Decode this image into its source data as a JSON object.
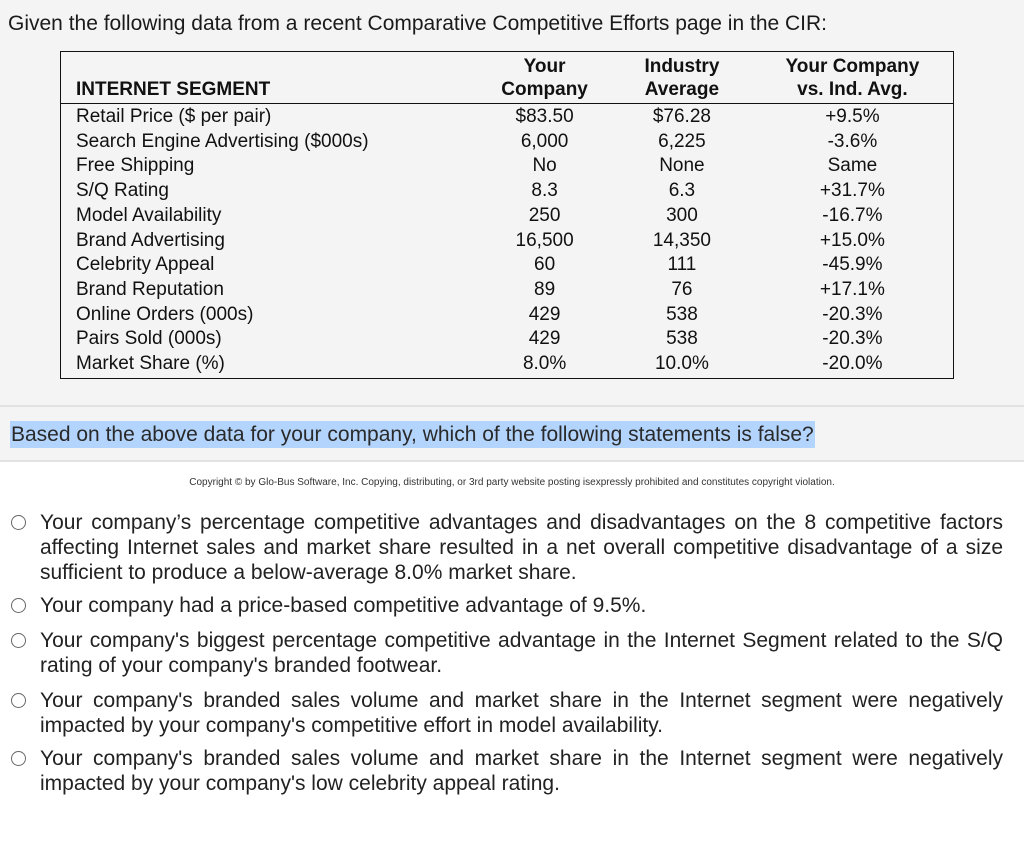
{
  "intro": "Given the following data from a recent Comparative Competitive Efforts page in the CIR:",
  "table": {
    "headers": {
      "segment": "INTERNET SEGMENT",
      "your_company_line1": "Your",
      "your_company_line2": "Company",
      "industry_line1": "Industry",
      "industry_line2": "Average",
      "vs_line1": "Your Company",
      "vs_line2": "vs. Ind. Avg."
    },
    "rows": [
      {
        "label": "Retail Price ($ per pair)",
        "your_company": "$83.50",
        "industry_average": "$76.28",
        "vs_ind_avg": "+9.5%"
      },
      {
        "label": "Search Engine Advertising ($000s)",
        "your_company": "6,000",
        "industry_average": "6,225",
        "vs_ind_avg": "-3.6%"
      },
      {
        "label": "Free Shipping",
        "your_company": "No",
        "industry_average": "None",
        "vs_ind_avg": "Same"
      },
      {
        "label": "S/Q Rating",
        "your_company": "8.3",
        "industry_average": "6.3",
        "vs_ind_avg": "+31.7%"
      },
      {
        "label": "Model Availability",
        "your_company": "250",
        "industry_average": "300",
        "vs_ind_avg": "-16.7%"
      },
      {
        "label": "Brand Advertising",
        "your_company": "16,500",
        "industry_average": "14,350",
        "vs_ind_avg": "+15.0%"
      },
      {
        "label": "Celebrity Appeal",
        "your_company": "60",
        "industry_average": "111",
        "vs_ind_avg": "-45.9%"
      },
      {
        "label": "Brand Reputation",
        "your_company": "89",
        "industry_average": "76",
        "vs_ind_avg": "+17.1%"
      },
      {
        "label": "Online Orders (000s)",
        "your_company": "429",
        "industry_average": "538",
        "vs_ind_avg": "-20.3%"
      },
      {
        "label": "Pairs Sold (000s)",
        "your_company": "429",
        "industry_average": "538",
        "vs_ind_avg": "-20.3%"
      },
      {
        "label": "Market Share (%)",
        "your_company": "8.0%",
        "industry_average": "10.0%",
        "vs_ind_avg": "-20.0%"
      }
    ]
  },
  "question": "Based on the above data for your company, which of the following statements is false?",
  "copyright": "Copyright © by Glo-Bus Software, Inc. Copying, distributing, or 3rd party website posting isexpressly prohibited and constitutes copyright violation.",
  "options": [
    {
      "text": "Your company’s percentage competitive advantages and disadvantages on the 8 competitive factors affecting Internet sales and market share resulted in a net overall competitive disadvantage of a size sufficient to produce a below-average 8.0% market share.",
      "selected": false
    },
    {
      "text": "Your company had a price-based competitive advantage of 9.5%.",
      "selected": false
    },
    {
      "text": "Your company's biggest percentage competitive advantage in the Internet Segment related to the S/Q rating of your company's branded footwear.",
      "selected": false
    },
    {
      "text": "Your company's branded sales volume and market share in the Internet segment were negatively impacted by your company's competitive effort in model availability.",
      "selected": false
    },
    {
      "text": "Your company's branded sales volume and market share in the Internet segment were negatively impacted by your company's low celebrity appeal rating.",
      "selected": false
    }
  ],
  "colors": {
    "panel_background": "#f4f4f4",
    "selection_highlight": "#b3d4fc",
    "separator": "#e2e2e2"
  }
}
